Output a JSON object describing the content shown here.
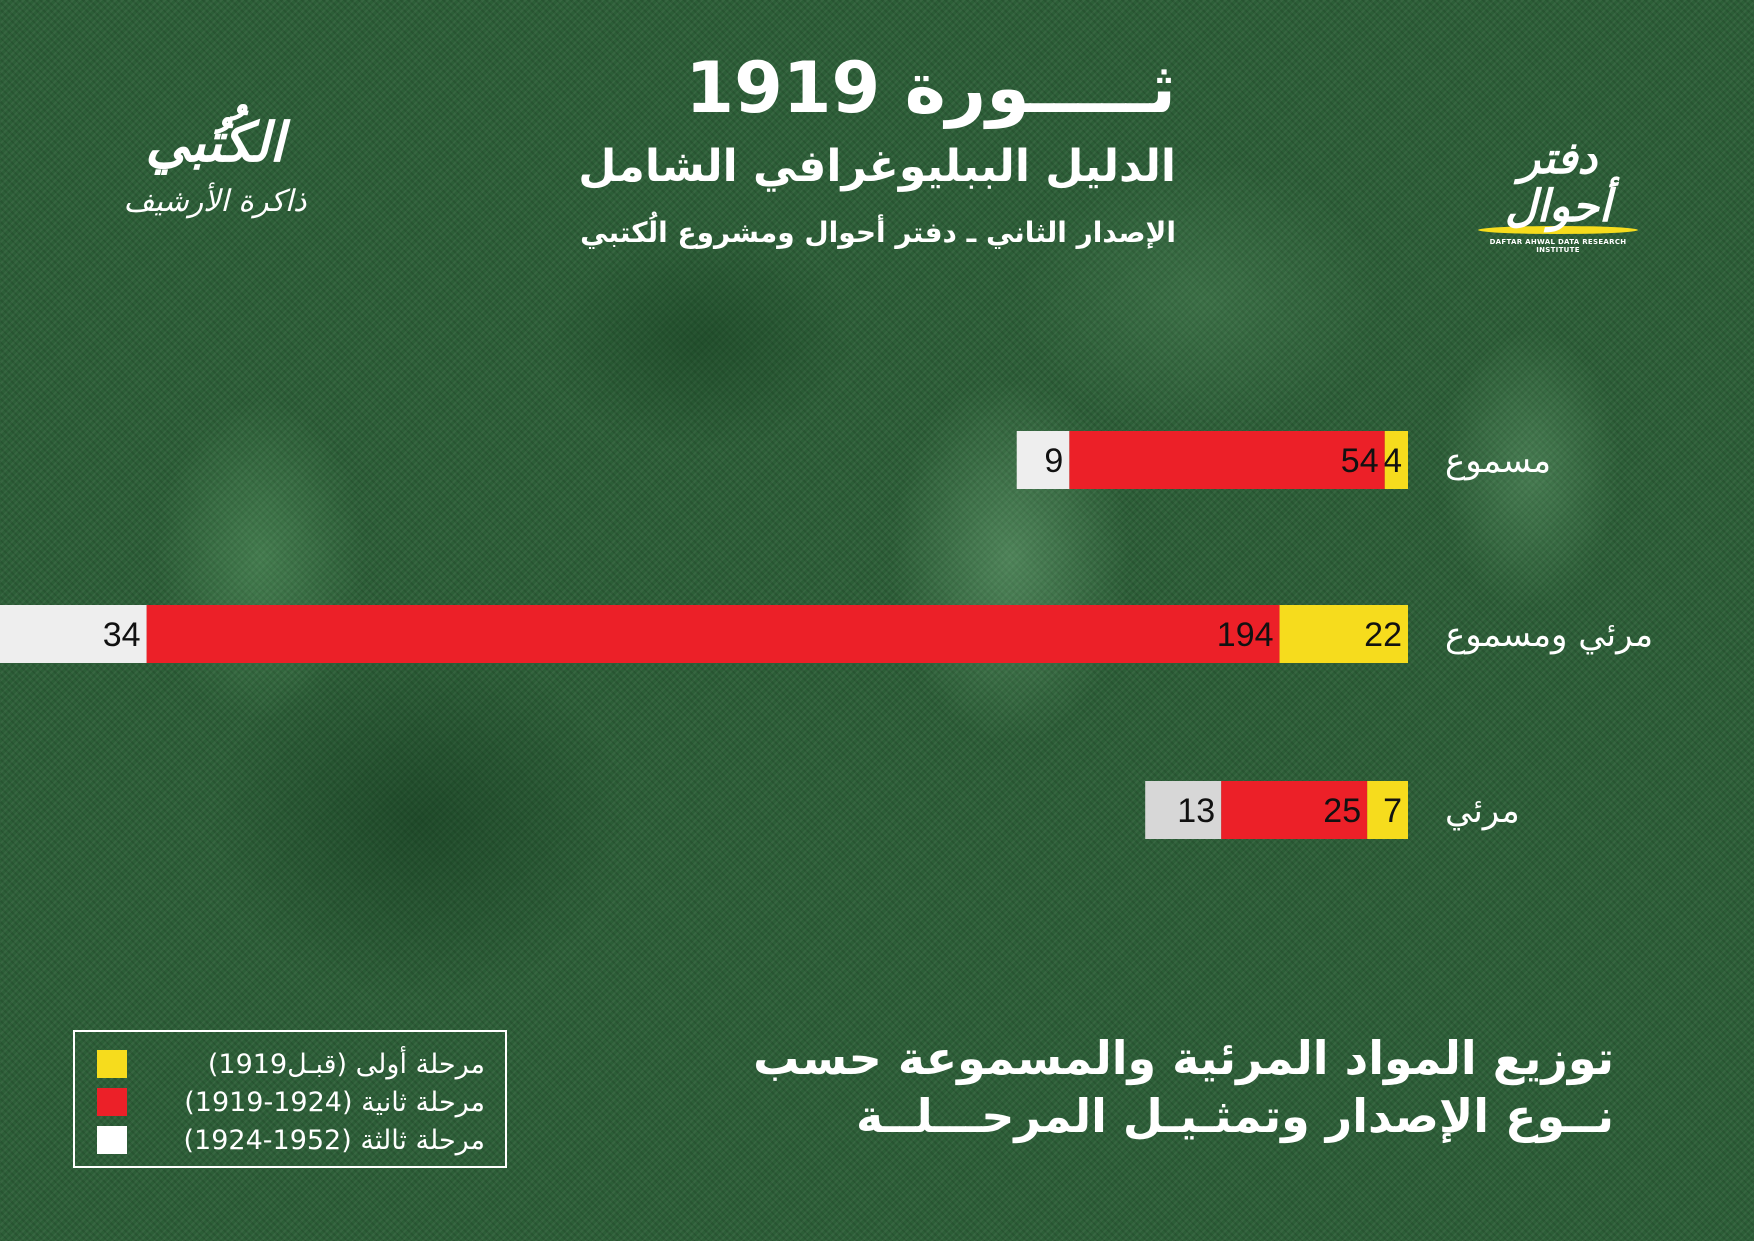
{
  "header": {
    "title": "ثـــــورة 1919",
    "subtitle": "الدليل الببليوغرافي الشامل",
    "edition": "الإصدار الثاني ـ دفتر أحوال ومشروع الُكتبي"
  },
  "logos": {
    "left_main": "الكُتُبي",
    "left_sub": "ذاكرة الأرشيف",
    "right_main": "دفتر أحوال",
    "right_tagline": "DAFTAR AHWAL DATA RESEARCH INSTITUTE"
  },
  "caption": {
    "line1": "توزيع المواد المرئية والمسموعة حسب",
    "line2": "نــوع الإصدار وتمثـيـل المرحـــلــة"
  },
  "colors": {
    "stage1": "#f6dc1d",
    "stage2": "#ec2028",
    "stage3": "#eeeeee",
    "stage3_alt": "#d7d7d7"
  },
  "legend": [
    {
      "label": "مرحلة أولى (قبـل1919)",
      "color": "#f6dc1d"
    },
    {
      "label": "مرحلة ثانية (1924-1919)",
      "color": "#ec2028"
    },
    {
      "label": "مرحلة ثالثة (1952-1924)",
      "color": "#ffffff"
    }
  ],
  "chart_data": {
    "type": "bar",
    "orientation": "horizontal",
    "stacked": true,
    "direction": "right-to-left",
    "categories": [
      "مسموع",
      "مرئي ومسموع",
      "مرئي"
    ],
    "series": [
      {
        "name": "مرحلة أولى (قبـل1919)",
        "values": [
          4,
          22,
          7
        ]
      },
      {
        "name": "مرحلة ثانية (1924-1919)",
        "values": [
          54,
          194,
          25
        ]
      },
      {
        "name": "مرحلة ثالثة (1952-1924)",
        "values": [
          9,
          34,
          13
        ]
      }
    ],
    "grid": false,
    "legend_position": "bottom-left"
  }
}
